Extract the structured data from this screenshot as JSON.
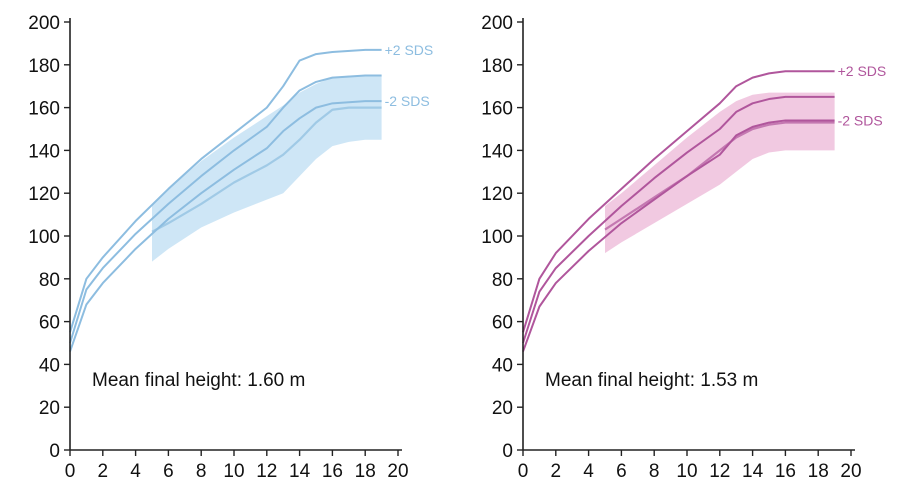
{
  "chart_data": [
    {
      "type": "line",
      "title": "",
      "xlabel": "",
      "ylabel": "",
      "xlim": [
        0,
        20
      ],
      "ylim": [
        0,
        200
      ],
      "x_ticks": [
        0,
        2,
        4,
        6,
        8,
        10,
        12,
        14,
        16,
        18,
        20
      ],
      "y_ticks": [
        0,
        20,
        40,
        60,
        80,
        100,
        120,
        140,
        160,
        180,
        200
      ],
      "annotation": "Mean final height: 1.60 m",
      "line_color": "#8dbde0",
      "band_color": "#c6e2f5",
      "reference_lines": [
        {
          "label": "+2 SDS",
          "x": [
            0,
            1,
            2,
            4,
            6,
            8,
            10,
            12,
            13,
            14,
            15,
            16,
            18,
            19
          ],
          "y": [
            55,
            80,
            90,
            107,
            122,
            136,
            148,
            160,
            170,
            182,
            185,
            186,
            187,
            187
          ]
        },
        {
          "label": "",
          "x": [
            0,
            1,
            2,
            4,
            6,
            8,
            10,
            12,
            13,
            14,
            15,
            16,
            18,
            19
          ],
          "y": [
            50,
            75,
            85,
            101,
            115,
            128,
            140,
            151,
            160,
            168,
            172,
            174,
            175,
            175
          ]
        },
        {
          "label": "-2 SDS",
          "x": [
            0,
            1,
            2,
            4,
            6,
            8,
            10,
            12,
            13,
            14,
            15,
            16,
            18,
            19
          ],
          "y": [
            46,
            68,
            78,
            94,
            108,
            120,
            131,
            141,
            149,
            155,
            160,
            162,
            163,
            163
          ]
        }
      ],
      "band": {
        "x": [
          5,
          6,
          8,
          10,
          12,
          13,
          14,
          15,
          16,
          17,
          18,
          19
        ],
        "upper": [
          115,
          122,
          135,
          146,
          156,
          161,
          167,
          171,
          174,
          175,
          175,
          175
        ],
        "lower": [
          88,
          94,
          104,
          111,
          117,
          120,
          128,
          136,
          142,
          144,
          145,
          145
        ]
      },
      "mean_line": {
        "x": [
          5,
          6,
          8,
          10,
          12,
          13,
          14,
          15,
          16,
          17,
          18,
          19
        ],
        "y": [
          102,
          106,
          115,
          125,
          133,
          138,
          145,
          153,
          159,
          160,
          160,
          160
        ]
      }
    },
    {
      "type": "line",
      "title": "",
      "xlabel": "",
      "ylabel": "",
      "xlim": [
        0,
        20
      ],
      "ylim": [
        0,
        200
      ],
      "x_ticks": [
        0,
        2,
        4,
        6,
        8,
        10,
        12,
        14,
        16,
        18,
        20
      ],
      "y_ticks": [
        0,
        20,
        40,
        60,
        80,
        100,
        120,
        140,
        160,
        180,
        200
      ],
      "annotation": "Mean final height: 1.53 m",
      "line_color": "#b0569c",
      "band_color": "#efbfdc",
      "reference_lines": [
        {
          "label": "+2 SDS",
          "x": [
            0,
            1,
            2,
            4,
            6,
            8,
            10,
            12,
            13,
            14,
            15,
            16,
            18,
            19
          ],
          "y": [
            55,
            80,
            92,
            108,
            122,
            136,
            149,
            162,
            170,
            174,
            176,
            177,
            177,
            177
          ]
        },
        {
          "label": "",
          "x": [
            0,
            1,
            2,
            4,
            6,
            8,
            10,
            12,
            13,
            14,
            15,
            16,
            18,
            19
          ],
          "y": [
            50,
            74,
            85,
            100,
            114,
            127,
            139,
            150,
            158,
            162,
            164,
            165,
            165,
            165
          ]
        },
        {
          "label": "-2 SDS",
          "x": [
            0,
            1,
            2,
            4,
            6,
            8,
            10,
            12,
            13,
            14,
            15,
            16,
            18,
            19
          ],
          "y": [
            46,
            67,
            78,
            93,
            106,
            117,
            128,
            138,
            147,
            151,
            153,
            154,
            154,
            154
          ]
        }
      ],
      "band": {
        "x": [
          5,
          6,
          8,
          10,
          12,
          13,
          14,
          15,
          16,
          17,
          18,
          19
        ],
        "upper": [
          114,
          120,
          133,
          146,
          158,
          163,
          166,
          167,
          167,
          167,
          167,
          167
        ],
        "lower": [
          92,
          97,
          106,
          115,
          124,
          130,
          136,
          139,
          140,
          140,
          140,
          140
        ]
      },
      "mean_line": {
        "x": [
          5,
          6,
          8,
          10,
          12,
          13,
          14,
          15,
          16,
          17,
          18,
          19
        ],
        "y": [
          103,
          108,
          118,
          128,
          140,
          146,
          150,
          152,
          153,
          153,
          153,
          153
        ]
      }
    }
  ]
}
